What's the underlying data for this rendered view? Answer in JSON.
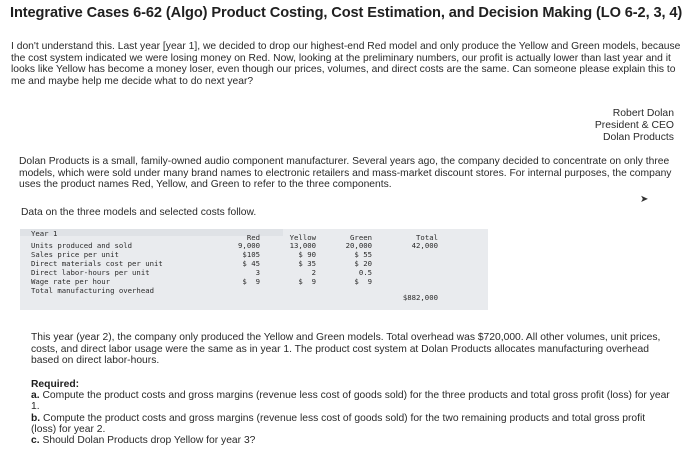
{
  "title": "Integrative Cases 6-62 (Algo) Product Costing, Cost Estimation, and Decision Making (LO 6-2, 3, 4)",
  "intro_paragraph": "I don't understand this. Last year [year 1], we decided to drop our highest-end Red model and only produce the Yellow and Green models, because the cost system indicated we were losing money on Red. Now, looking at the preliminary numbers, our profit is actually lower than last year and it looks like Yellow has become a money loser, even though our prices, volumes, and direct costs are the same. Can someone please explain this to me and maybe help me decide what to do next year?",
  "signature": {
    "name": "Robert Dolan",
    "position": "President & CEO",
    "company": "Dolan Products"
  },
  "company_paragraph": "Dolan Products is a small, family-owned audio component manufacturer. Several years ago, the company decided to concentrate on only three models, which were sold under many brand names to electronic retailers and mass-market discount stores. For internal purposes, the company uses the product names Red, Yellow, and Green to refer to the three components.",
  "data_intro": "Data on the three models and selected costs follow.",
  "table": {
    "year_label": "Year 1",
    "columns": [
      "Red",
      "Yellow",
      "Green",
      "Total"
    ],
    "rows": [
      {
        "label": "Units produced and sold",
        "red": "9,000",
        "yellow": "13,000",
        "green": "20,000",
        "total": "42,000"
      },
      {
        "label": "Sales price per unit",
        "red": "$105",
        "yellow": "$ 90",
        "green": "$ 55",
        "total": ""
      },
      {
        "label": "Direct materials cost per unit",
        "red": "$ 45",
        "yellow": "$ 35",
        "green": "$ 20",
        "total": ""
      },
      {
        "label": "Direct labor-hours per unit",
        "red": "3",
        "yellow": "2",
        "green": "0.5",
        "total": ""
      },
      {
        "label": "Wage rate per hour",
        "red": "$  9",
        "yellow": "$  9",
        "green": "$  9",
        "total": ""
      },
      {
        "label": "Total manufacturing overhead",
        "red": "",
        "yellow": "",
        "green": "",
        "total": "$882,000"
      }
    ]
  },
  "year2_paragraph": "This year (year 2), the company only produced the Yellow and Green models. Total overhead was $720,000. All other volumes, unit prices, costs, and direct labor usage were the same as in year 1. The product cost system at Dolan Products allocates manufacturing overhead based on direct labor-hours.",
  "required": {
    "heading": "Required:",
    "items": [
      {
        "letter": "a.",
        "text": "Compute the product costs and gross margins (revenue less cost of goods sold) for the three products and total gross profit (loss) for year 1."
      },
      {
        "letter": "b.",
        "text": "Compute the product costs and gross margins (revenue less cost of goods sold) for the two remaining products and total gross profit (loss) for year 2."
      },
      {
        "letter": "c.",
        "text": "Should Dolan Products drop Yellow for year 3?"
      }
    ]
  }
}
